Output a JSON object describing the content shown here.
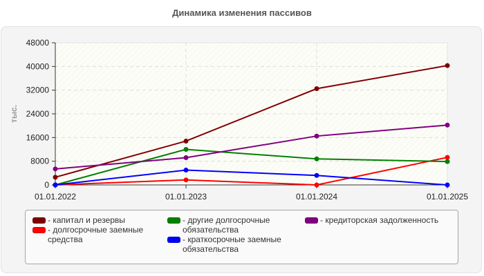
{
  "title": "Динамика изменения пассивов",
  "y_axis_label": "тыс.",
  "chart_data": {
    "type": "line",
    "title": "Динамика изменения пассивов",
    "xlabel": "",
    "ylabel": "тыс.",
    "ylim": [
      0,
      48000
    ],
    "yticks": [
      0,
      8000,
      16000,
      24000,
      32000,
      40000,
      48000
    ],
    "grid": true,
    "legend_position": "bottom",
    "categories": [
      "01.01.2022",
      "01.01.2023",
      "01.01.2024",
      "01.01.2025"
    ],
    "series": [
      {
        "name": "капитал и резервы",
        "color": "#800000",
        "values": [
          2600,
          14800,
          32500,
          40300
        ]
      },
      {
        "name": "долгосрочные заемные средства",
        "color": "#ff0000",
        "values": [
          0,
          1700,
          0,
          9300
        ]
      },
      {
        "name": "другие долгосрочные обязательства",
        "color": "#008000",
        "values": [
          0,
          12000,
          8800,
          7900
        ]
      },
      {
        "name": "краткосрочные заемные обязательства",
        "color": "#0000ff",
        "values": [
          0,
          5000,
          3200,
          0
        ]
      },
      {
        "name": "кредиторская задолженность",
        "color": "#800080",
        "values": [
          5400,
          9200,
          16500,
          20200
        ]
      }
    ]
  },
  "legend": {
    "items": [
      {
        "label": "- капитал и резервы",
        "color": "#800000"
      },
      {
        "label": "- долгосрочные заемные средства",
        "color": "#ff0000"
      },
      {
        "label": "- другие долгосрочные обязательства",
        "color": "#008000"
      },
      {
        "label": "- краткосрочные заемные обязательства",
        "color": "#0000ff"
      },
      {
        "label": "- кредиторская задолженность",
        "color": "#800080"
      }
    ]
  }
}
